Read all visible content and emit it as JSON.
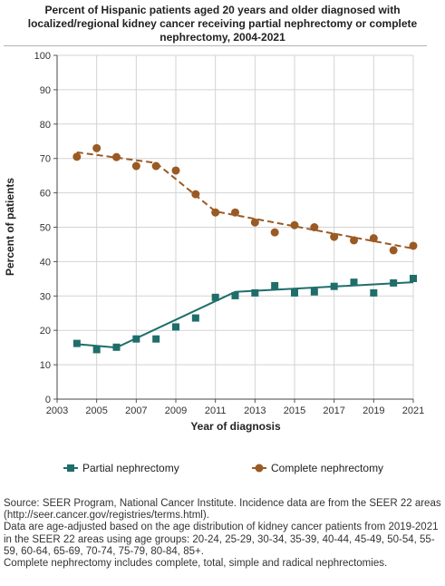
{
  "title_lines": [
    "Percent of Hispanic patients aged 20 years and older diagnosed with",
    "localized/regional kidney cancer receiving partial nephrectomy or complete",
    "nephrectomy, 2004-2021"
  ],
  "footnotes": [
    "Source: SEER Program, National Cancer Institute. Incidence data are from the SEER 22 areas (http://seer.cancer.gov/registries/terms.html).",
    "Data are age-adjusted based on the age distribution of kidney cancer patients from 2019-2021 in the SEER 22 areas using age groups: 20-24, 25-29, 30-34, 35-39, 40-44, 45-49, 50-54, 55-59, 60-64, 65-69, 70-74, 75-79, 80-84, 85+.",
    "Complete nephrectomy includes complete, total, simple and radical nephrectomies."
  ],
  "chart_data": {
    "type": "scatter",
    "xlabel": "Year of diagnosis",
    "ylabel": "Percent of patients",
    "xlim": [
      2003,
      2021
    ],
    "ylim": [
      0,
      100
    ],
    "x_ticks": [
      2003,
      2005,
      2007,
      2009,
      2011,
      2013,
      2015,
      2017,
      2019,
      2021
    ],
    "y_ticks": [
      0,
      10,
      20,
      30,
      40,
      50,
      60,
      70,
      80,
      90,
      100
    ],
    "grid": "vertical and horizontal",
    "legend_position": "bottom",
    "x": [
      2004,
      2005,
      2006,
      2007,
      2008,
      2009,
      2010,
      2011,
      2012,
      2013,
      2014,
      2015,
      2016,
      2017,
      2018,
      2019,
      2020,
      2021
    ],
    "series": [
      {
        "name": "Partial nephrectomy",
        "marker": "square",
        "color": "#1f6e6a",
        "values": [
          16.2,
          14.4,
          15.1,
          17.5,
          17.5,
          21.0,
          23.6,
          29.6,
          30.1,
          30.9,
          33.0,
          30.9,
          31.2,
          32.8,
          34.0,
          30.9,
          33.8,
          35.1
        ],
        "trend": {
          "x": [
            2004,
            2006,
            2012,
            2021
          ],
          "y": [
            16.0,
            15.0,
            31.2,
            34.0
          ],
          "style": "solid"
        }
      },
      {
        "name": "Complete nephrectomy",
        "marker": "circle",
        "color": "#9a5a24",
        "values": [
          70.5,
          73.0,
          70.4,
          67.8,
          67.8,
          66.5,
          59.6,
          54.3,
          54.3,
          51.4,
          48.5,
          50.6,
          50.0,
          47.2,
          46.2,
          46.8,
          43.3,
          44.6
        ],
        "trend": {
          "x": [
            2004,
            2008,
            2011,
            2021
          ],
          "y": [
            71.8,
            68.7,
            54.6,
            43.8
          ],
          "style": "dashed"
        }
      }
    ]
  }
}
